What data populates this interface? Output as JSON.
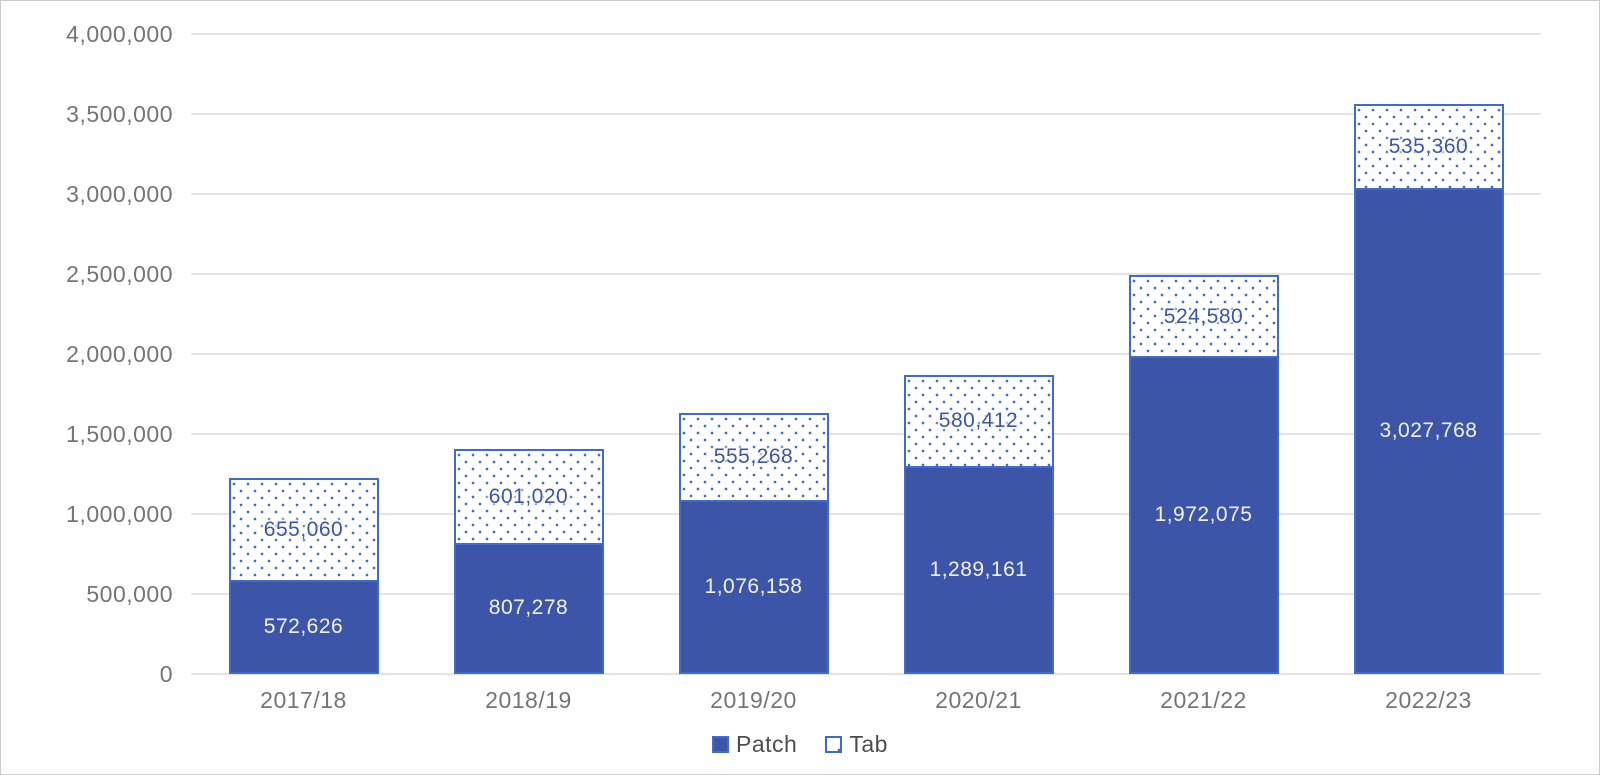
{
  "frame": {
    "background": "#ffffff",
    "border_color": "#cbcbcb"
  },
  "chart_data": {
    "type": "bar",
    "stacked": true,
    "title": "",
    "xlabel": "",
    "ylabel": "",
    "categories": [
      "2017/18",
      "2018/19",
      "2019/20",
      "2020/21",
      "2021/22",
      "2022/23"
    ],
    "series": [
      {
        "name": "Patch",
        "style": "solid",
        "values": [
          572626,
          807278,
          1076158,
          1289161,
          1972075,
          3027768
        ],
        "labels": [
          "572,626",
          "807,278",
          "1,076,158",
          "1,289,161",
          "1,972,075",
          "3,027,768"
        ]
      },
      {
        "name": "Tab",
        "style": "dotted",
        "values": [
          655060,
          601020,
          555268,
          580412,
          524580,
          535360
        ],
        "labels": [
          "655,060",
          "601,020",
          "555,268",
          "580,412",
          "524,580",
          "535,360"
        ]
      }
    ],
    "ylim": [
      0,
      4000000
    ],
    "ytick_labels": [
      "4,000,000",
      "3,500,000",
      "3,000,000",
      "2,500,000",
      "2,000,000",
      "1,500,000",
      "1,000,000",
      "500,000",
      "0"
    ],
    "grid": true,
    "legend_position": "bottom",
    "legend": [
      "Patch",
      "Tab"
    ],
    "colors": {
      "patch_fill": "#3d55a8",
      "bar_border": "#3e6bd0",
      "tab_dot": "#3e6bd0",
      "tab_background": "#ffffff",
      "patch_label_text": "#f2f2f2",
      "tab_label_text": "#3d55a8",
      "gridline": "#e3e3e3",
      "axis_text": "#757575",
      "legend_text": "#4d4d4d",
      "frame_border": "#cbcbcb"
    }
  }
}
